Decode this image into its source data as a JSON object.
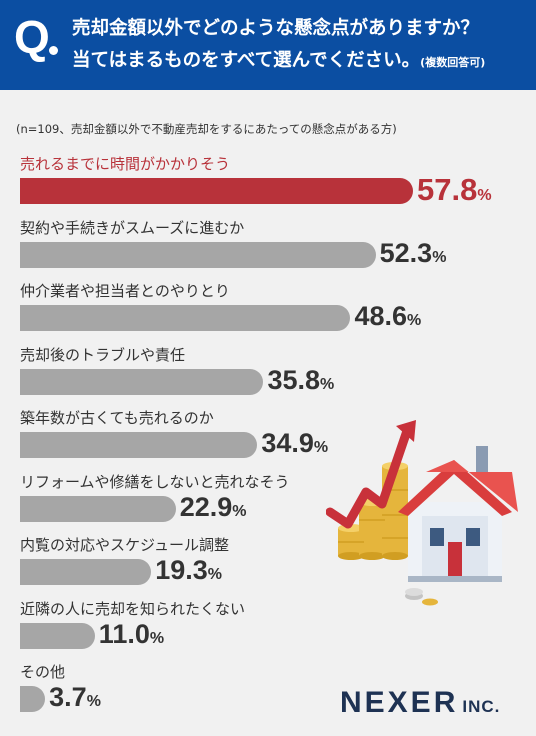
{
  "header": {
    "q_letter": "Q",
    "line1": "売却金額以外でどのような懸念点がありますか？",
    "line2": "当てはまるものをすべて選んでください。",
    "note": "(複数回答可)"
  },
  "subtitle": "(n=109、売却金額以外で不動産売却をするにあたっての懸念点がある方)",
  "colors": {
    "header": "#0b4ea2",
    "highlight": "#b8323a",
    "bar": "#a6a6a6",
    "background": "#f1f1f1"
  },
  "percent_sign": "%",
  "chart_data": {
    "type": "bar",
    "orientation": "horizontal",
    "unit": "%",
    "categories": [
      "売れるまでに時間がかかりそう",
      "契約や手続きがスムーズに進むか",
      "仲介業者や担当者とのやりとり",
      "売却後のトラブルや責任",
      "築年数が古くても売れるのか",
      "リフォームや修繕をしないと売れなそう",
      "内覧の対応やスケジュール調整",
      "近隣の人に売却を知られたくない",
      "その他"
    ],
    "values": [
      57.8,
      52.3,
      48.6,
      35.8,
      34.9,
      22.9,
      19.3,
      11.0,
      3.7
    ],
    "value_labels": [
      "57.8",
      "52.3",
      "48.6",
      "35.8",
      "34.9",
      "22.9",
      "19.3",
      "11.0",
      "3.7"
    ],
    "highlight_index": 0
  },
  "icons": [
    "rising-arrow-icon",
    "coin-stack-icon",
    "house-icon"
  ],
  "logo": {
    "main": "NEXER",
    "sub": "INC."
  }
}
